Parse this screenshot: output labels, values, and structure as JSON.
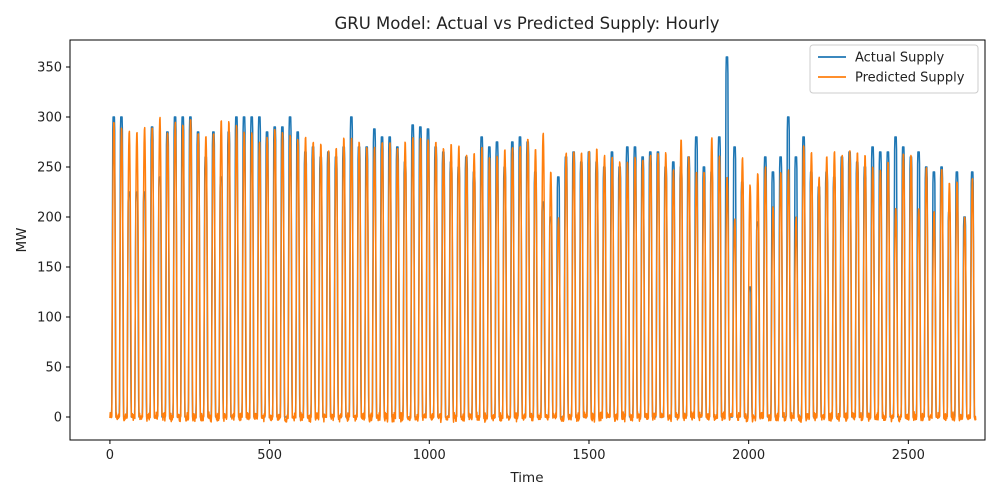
{
  "chart_data": {
    "type": "line",
    "title": "GRU Model: Actual vs Predicted Supply:  Hourly",
    "xlabel": "Time",
    "ylabel": "MW",
    "xlim": [
      -125,
      2740
    ],
    "ylim": [
      -23,
      377
    ],
    "xticks": [
      0,
      500,
      1000,
      1500,
      2000,
      2500
    ],
    "yticks": [
      0,
      50,
      100,
      150,
      200,
      250,
      300,
      350
    ],
    "x_tick_labels": [
      "0",
      "500",
      "1000",
      "1500",
      "2000",
      "2500"
    ],
    "y_tick_labels": [
      "0",
      "50",
      "100",
      "150",
      "200",
      "250",
      "300",
      "350"
    ],
    "legend_position": "upper right",
    "sampling": "hourly (24 samples per day), values below are daily peaks",
    "series": [
      {
        "name": "Actual Supply",
        "color": "#1f77b4",
        "values": [
          300,
          300,
          225,
          225,
          225,
          290,
          240,
          285,
          300,
          300,
          300,
          285,
          260,
          285,
          240,
          285,
          300,
          300,
          300,
          300,
          285,
          290,
          290,
          300,
          285,
          265,
          270,
          260,
          265,
          260,
          270,
          300,
          270,
          270,
          288,
          280,
          280,
          270,
          255,
          292,
          290,
          288,
          270,
          265,
          255,
          250,
          260,
          245,
          280,
          270,
          275,
          250,
          275,
          280,
          275,
          245,
          215,
          200,
          240,
          260,
          265,
          255,
          265,
          255,
          250,
          265,
          250,
          270,
          270,
          260,
          265,
          265,
          250,
          255,
          250,
          260,
          280,
          250,
          245,
          280,
          360,
          270,
          235,
          130,
          195,
          260,
          245,
          260,
          300,
          260,
          280,
          245,
          230,
          245,
          240,
          260,
          265,
          255,
          250,
          270,
          265,
          265,
          280,
          270,
          260,
          265,
          250,
          245,
          250,
          205,
          245,
          200,
          245
        ]
      },
      {
        "name": "Predicted Supply",
        "color": "#ff7f0e",
        "values": [
          295,
          290,
          287,
          285,
          290,
          290,
          300,
          285,
          295,
          292,
          300,
          285,
          282,
          285,
          297,
          296,
          292,
          285,
          285,
          275,
          280,
          288,
          285,
          282,
          278,
          280,
          275,
          273,
          268,
          270,
          280,
          280,
          275,
          270,
          270,
          276,
          275,
          270,
          275,
          280,
          280,
          278,
          275,
          270,
          275,
          272,
          262,
          265,
          270,
          260,
          262,
          268,
          270,
          272,
          278,
          270,
          285,
          245,
          200,
          265,
          265,
          265,
          267,
          270,
          262,
          260,
          256,
          255,
          260,
          258,
          262,
          264,
          265,
          248,
          278,
          262,
          246,
          245,
          280,
          262,
          240,
          198,
          260,
          232,
          245,
          250,
          210,
          245,
          248,
          200,
          272,
          265,
          240,
          262,
          266,
          262,
          268,
          265,
          262,
          250,
          248,
          255,
          210,
          265,
          262,
          210,
          250,
          205,
          250,
          235,
          235,
          200,
          240
        ]
      }
    ]
  }
}
